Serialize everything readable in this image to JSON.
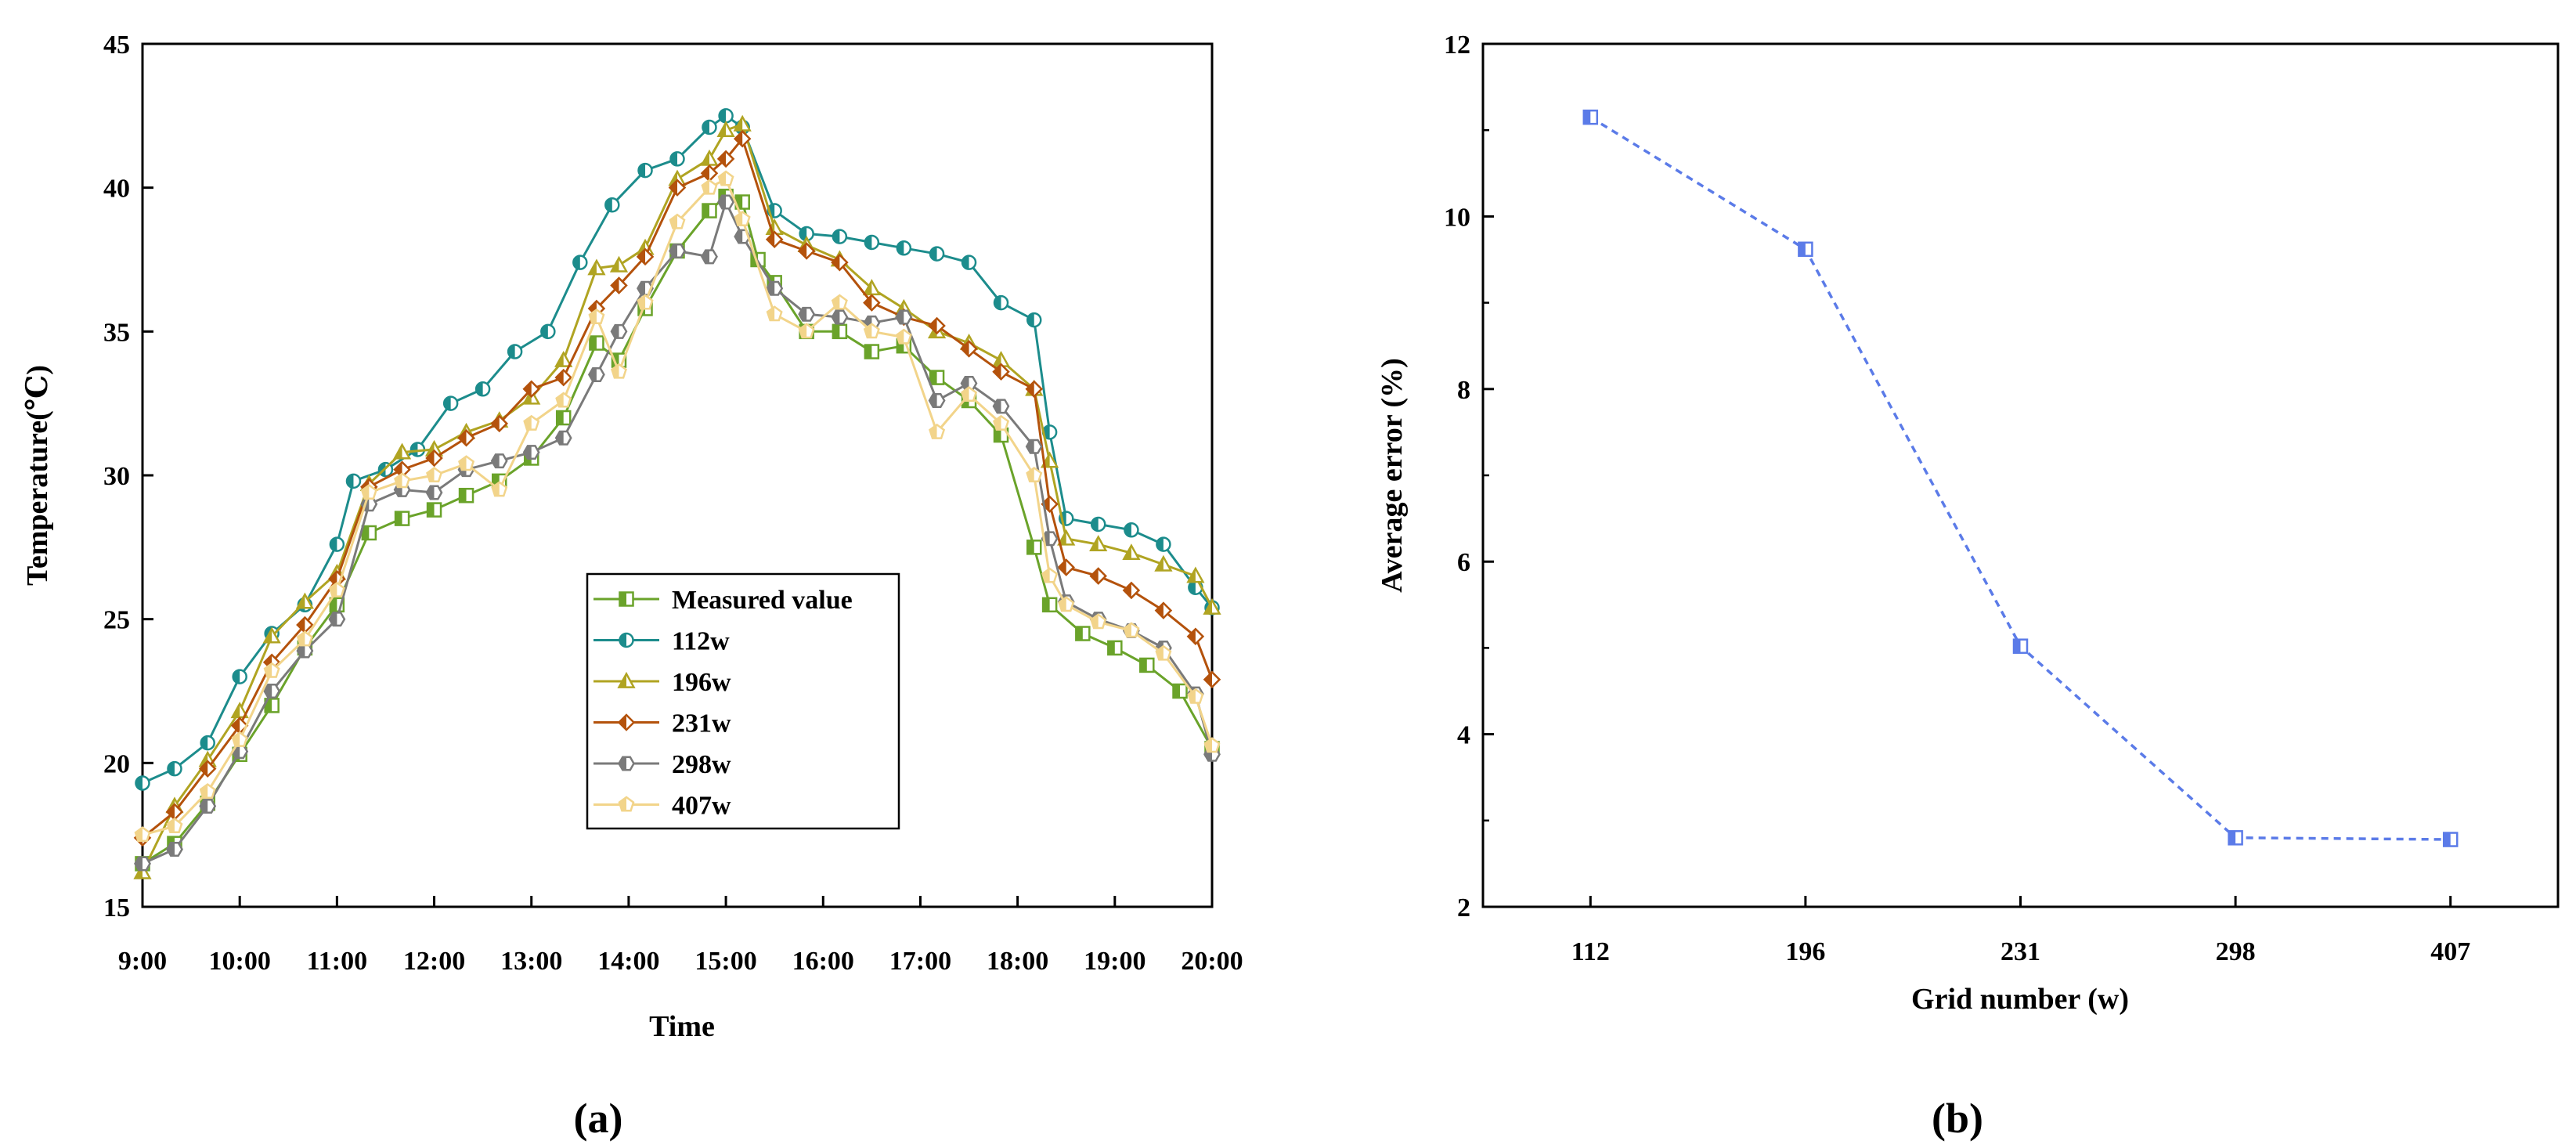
{
  "chart_data": [
    {
      "panel": "(a)",
      "type": "line",
      "title": "",
      "xlabel": "Time",
      "ylabel": "Temperature(℃)",
      "xlim": [
        9,
        20
      ],
      "ylim": [
        15,
        45
      ],
      "xticks": [
        9,
        10,
        11,
        12,
        13,
        14,
        15,
        16,
        17,
        18,
        19,
        20
      ],
      "xtick_labels": [
        "9:00",
        "10:00",
        "11:00",
        "12:00",
        "13:00",
        "14:00",
        "15:00",
        "16:00",
        "17:00",
        "18:00",
        "19:00",
        "20:00"
      ],
      "yticks": [
        15,
        20,
        25,
        30,
        35,
        40,
        45
      ],
      "ytick_labels": [
        "15",
        "20",
        "25",
        "30",
        "35",
        "40",
        "45"
      ],
      "legend_position": "center-bottom",
      "series": [
        {
          "name": "Measured value",
          "color": "#6aa32a",
          "marker": "square",
          "points": [
            [
              9.0,
              16.5
            ],
            [
              9.33,
              17.2
            ],
            [
              9.67,
              18.6
            ],
            [
              10.0,
              20.3
            ],
            [
              10.33,
              22.0
            ],
            [
              10.67,
              24.0
            ],
            [
              11.0,
              25.5
            ],
            [
              11.33,
              28.0
            ],
            [
              11.67,
              28.5
            ],
            [
              12.0,
              28.8
            ],
            [
              12.33,
              29.3
            ],
            [
              12.67,
              29.8
            ],
            [
              13.0,
              30.6
            ],
            [
              13.33,
              32.0
            ],
            [
              13.67,
              34.6
            ],
            [
              13.9,
              34.0
            ],
            [
              14.17,
              35.8
            ],
            [
              14.5,
              37.8
            ],
            [
              14.83,
              39.2
            ],
            [
              15.0,
              39.7
            ],
            [
              15.17,
              39.5
            ],
            [
              15.33,
              37.5
            ],
            [
              15.5,
              36.7
            ],
            [
              15.83,
              35.0
            ],
            [
              16.17,
              35.0
            ],
            [
              16.5,
              34.3
            ],
            [
              16.83,
              34.5
            ],
            [
              17.17,
              33.4
            ],
            [
              17.5,
              32.6
            ],
            [
              17.83,
              31.4
            ],
            [
              18.17,
              27.5
            ],
            [
              18.33,
              25.5
            ],
            [
              18.67,
              24.5
            ],
            [
              19.0,
              24.0
            ],
            [
              19.33,
              23.4
            ],
            [
              19.67,
              22.5
            ],
            [
              20.0,
              20.5
            ]
          ]
        },
        {
          "name": "112w",
          "color": "#1c8c8c",
          "marker": "circle",
          "points": [
            [
              9.0,
              19.3
            ],
            [
              9.33,
              19.8
            ],
            [
              9.67,
              20.7
            ],
            [
              10.0,
              23.0
            ],
            [
              10.33,
              24.5
            ],
            [
              10.67,
              25.5
            ],
            [
              11.0,
              27.6
            ],
            [
              11.17,
              29.8
            ],
            [
              11.5,
              30.2
            ],
            [
              11.83,
              30.9
            ],
            [
              12.17,
              32.5
            ],
            [
              12.5,
              33.0
            ],
            [
              12.83,
              34.3
            ],
            [
              13.17,
              35.0
            ],
            [
              13.5,
              37.4
            ],
            [
              13.83,
              39.4
            ],
            [
              14.17,
              40.6
            ],
            [
              14.5,
              41.0
            ],
            [
              14.83,
              42.1
            ],
            [
              15.0,
              42.5
            ],
            [
              15.17,
              42.1
            ],
            [
              15.5,
              39.2
            ],
            [
              15.83,
              38.4
            ],
            [
              16.17,
              38.3
            ],
            [
              16.5,
              38.1
            ],
            [
              16.83,
              37.9
            ],
            [
              17.17,
              37.7
            ],
            [
              17.5,
              37.4
            ],
            [
              17.83,
              36.0
            ],
            [
              18.17,
              35.4
            ],
            [
              18.33,
              31.5
            ],
            [
              18.5,
              28.5
            ],
            [
              18.83,
              28.3
            ],
            [
              19.17,
              28.1
            ],
            [
              19.5,
              27.6
            ],
            [
              19.83,
              26.1
            ],
            [
              20.0,
              25.4
            ]
          ]
        },
        {
          "name": "196w",
          "color": "#b0a422",
          "marker": "triangle",
          "points": [
            [
              9.0,
              16.2
            ],
            [
              9.33,
              18.5
            ],
            [
              9.67,
              20.1
            ],
            [
              10.0,
              21.8
            ],
            [
              10.33,
              24.4
            ],
            [
              10.67,
              25.6
            ],
            [
              11.0,
              26.6
            ],
            [
              11.33,
              29.7
            ],
            [
              11.67,
              30.8
            ],
            [
              12.0,
              30.9
            ],
            [
              12.33,
              31.5
            ],
            [
              12.67,
              31.9
            ],
            [
              13.0,
              32.7
            ],
            [
              13.33,
              34.0
            ],
            [
              13.67,
              37.2
            ],
            [
              13.9,
              37.3
            ],
            [
              14.17,
              37.9
            ],
            [
              14.5,
              40.3
            ],
            [
              14.83,
              41.0
            ],
            [
              15.0,
              42.0
            ],
            [
              15.17,
              42.2
            ],
            [
              15.5,
              38.6
            ],
            [
              15.83,
              38.0
            ],
            [
              16.17,
              37.5
            ],
            [
              16.5,
              36.5
            ],
            [
              16.83,
              35.8
            ],
            [
              17.17,
              35.0
            ],
            [
              17.5,
              34.6
            ],
            [
              17.83,
              34.0
            ],
            [
              18.17,
              33.0
            ],
            [
              18.33,
              30.5
            ],
            [
              18.5,
              27.8
            ],
            [
              18.83,
              27.6
            ],
            [
              19.17,
              27.3
            ],
            [
              19.5,
              26.9
            ],
            [
              19.83,
              26.5
            ],
            [
              20.0,
              25.4
            ]
          ]
        },
        {
          "name": "231w",
          "color": "#b4520c",
          "marker": "diamond",
          "points": [
            [
              9.0,
              17.4
            ],
            [
              9.33,
              18.3
            ],
            [
              9.67,
              19.8
            ],
            [
              10.0,
              21.3
            ],
            [
              10.33,
              23.5
            ],
            [
              10.67,
              24.8
            ],
            [
              11.0,
              26.4
            ],
            [
              11.33,
              29.6
            ],
            [
              11.67,
              30.2
            ],
            [
              12.0,
              30.6
            ],
            [
              12.33,
              31.3
            ],
            [
              12.67,
              31.8
            ],
            [
              13.0,
              33.0
            ],
            [
              13.33,
              33.4
            ],
            [
              13.67,
              35.8
            ],
            [
              13.9,
              36.6
            ],
            [
              14.17,
              37.6
            ],
            [
              14.5,
              40.0
            ],
            [
              14.83,
              40.5
            ],
            [
              15.0,
              41.0
            ],
            [
              15.17,
              41.7
            ],
            [
              15.5,
              38.2
            ],
            [
              15.83,
              37.8
            ],
            [
              16.17,
              37.4
            ],
            [
              16.5,
              36.0
            ],
            [
              16.83,
              35.5
            ],
            [
              17.17,
              35.2
            ],
            [
              17.5,
              34.4
            ],
            [
              17.83,
              33.6
            ],
            [
              18.17,
              33.0
            ],
            [
              18.33,
              29.0
            ],
            [
              18.5,
              26.8
            ],
            [
              18.83,
              26.5
            ],
            [
              19.17,
              26.0
            ],
            [
              19.5,
              25.3
            ],
            [
              19.83,
              24.4
            ],
            [
              20.0,
              22.9
            ]
          ]
        },
        {
          "name": "298w",
          "color": "#7a7a7a",
          "marker": "hexagon",
          "points": [
            [
              9.0,
              16.5
            ],
            [
              9.33,
              17.0
            ],
            [
              9.67,
              18.5
            ],
            [
              10.0,
              20.4
            ],
            [
              10.33,
              22.5
            ],
            [
              10.67,
              23.9
            ],
            [
              11.0,
              25.0
            ],
            [
              11.33,
              29.0
            ],
            [
              11.67,
              29.5
            ],
            [
              12.0,
              29.4
            ],
            [
              12.33,
              30.2
            ],
            [
              12.67,
              30.5
            ],
            [
              13.0,
              30.8
            ],
            [
              13.33,
              31.3
            ],
            [
              13.67,
              33.5
            ],
            [
              13.9,
              35.0
            ],
            [
              14.17,
              36.5
            ],
            [
              14.5,
              37.8
            ],
            [
              14.83,
              37.6
            ],
            [
              15.0,
              39.5
            ],
            [
              15.17,
              38.3
            ],
            [
              15.5,
              36.5
            ],
            [
              15.83,
              35.6
            ],
            [
              16.17,
              35.5
            ],
            [
              16.5,
              35.3
            ],
            [
              16.83,
              35.5
            ],
            [
              17.17,
              32.6
            ],
            [
              17.5,
              33.2
            ],
            [
              17.83,
              32.4
            ],
            [
              18.17,
              31.0
            ],
            [
              18.33,
              27.8
            ],
            [
              18.5,
              25.6
            ],
            [
              18.83,
              25.0
            ],
            [
              19.17,
              24.6
            ],
            [
              19.5,
              24.0
            ],
            [
              19.83,
              22.4
            ],
            [
              20.0,
              20.3
            ]
          ]
        },
        {
          "name": "407w",
          "color": "#f2d48a",
          "marker": "pentagon",
          "points": [
            [
              9.0,
              17.5
            ],
            [
              9.33,
              17.8
            ],
            [
              9.67,
              19.0
            ],
            [
              10.0,
              20.8
            ],
            [
              10.33,
              23.2
            ],
            [
              10.67,
              24.3
            ],
            [
              11.0,
              26.0
            ],
            [
              11.33,
              29.4
            ],
            [
              11.67,
              29.8
            ],
            [
              12.0,
              30.0
            ],
            [
              12.33,
              30.4
            ],
            [
              12.67,
              29.5
            ],
            [
              13.0,
              31.8
            ],
            [
              13.33,
              32.6
            ],
            [
              13.67,
              35.5
            ],
            [
              13.9,
              33.6
            ],
            [
              14.17,
              36.0
            ],
            [
              14.5,
              38.8
            ],
            [
              14.83,
              40.0
            ],
            [
              15.0,
              40.3
            ],
            [
              15.17,
              38.9
            ],
            [
              15.5,
              35.6
            ],
            [
              15.83,
              35.0
            ],
            [
              16.17,
              36.0
            ],
            [
              16.5,
              35.0
            ],
            [
              16.83,
              34.8
            ],
            [
              17.17,
              31.5
            ],
            [
              17.5,
              32.8
            ],
            [
              17.83,
              31.8
            ],
            [
              18.17,
              30.0
            ],
            [
              18.33,
              26.5
            ],
            [
              18.5,
              25.5
            ],
            [
              18.83,
              24.9
            ],
            [
              19.17,
              24.6
            ],
            [
              19.5,
              23.8
            ],
            [
              19.83,
              22.3
            ],
            [
              20.0,
              20.6
            ]
          ]
        }
      ]
    },
    {
      "panel": "(b)",
      "type": "line",
      "title": "",
      "xlabel": "Grid number (w)",
      "ylabel": "Average error (%)",
      "categories": [
        "112",
        "196",
        "231",
        "298",
        "407"
      ],
      "values": [
        11.15,
        9.62,
        5.02,
        2.8,
        2.78
      ],
      "ylim": [
        2,
        12
      ],
      "yticks": [
        2,
        4,
        6,
        8,
        10,
        12
      ],
      "ytick_labels": [
        "2",
        "4",
        "6",
        "8",
        "10",
        "12"
      ],
      "color": "#5b7be8",
      "marker": "square",
      "line_style": "dashed"
    }
  ]
}
